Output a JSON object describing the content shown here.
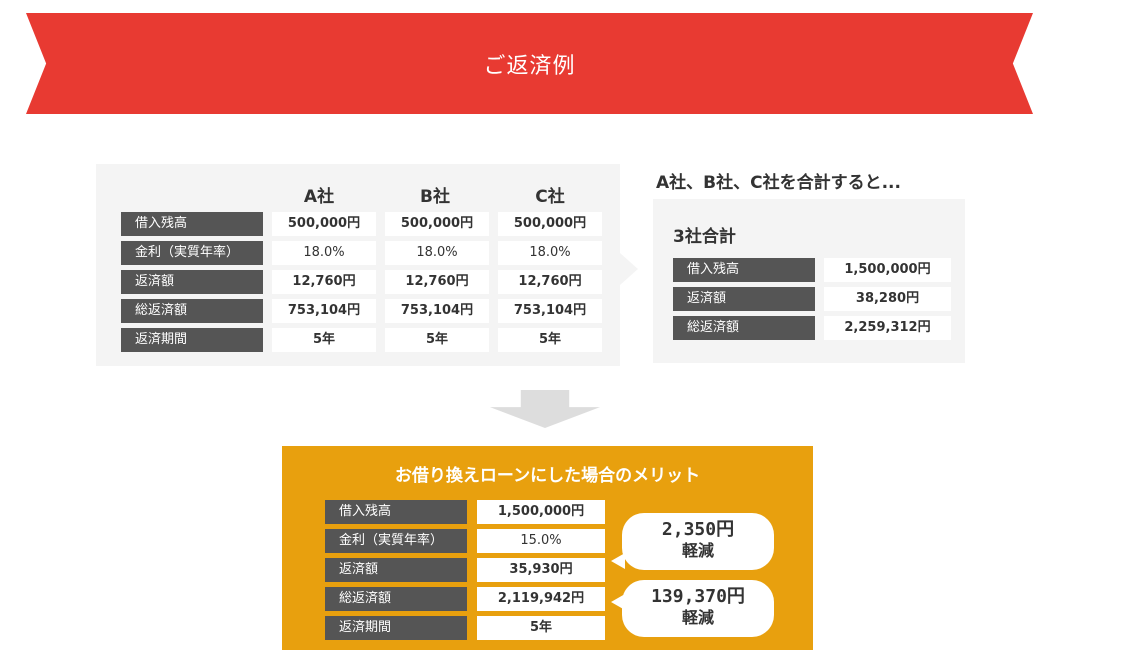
{
  "banner": {
    "title": "ご返済例"
  },
  "companies": {
    "columns": [
      "A社",
      "B社",
      "C社"
    ],
    "rows": [
      {
        "label": "借入残高",
        "values": [
          "500,000円",
          "500,000円",
          "500,000円"
        ]
      },
      {
        "label": "金利（実質年率）",
        "values": [
          "18.0%",
          "18.0%",
          "18.0%"
        ]
      },
      {
        "label": "返済額",
        "values": [
          "12,760円",
          "12,760円",
          "12,760円"
        ]
      },
      {
        "label": "総返済額",
        "values": [
          "753,104円",
          "753,104円",
          "753,104円"
        ]
      },
      {
        "label": "返済期間",
        "values": [
          "5年",
          "5年",
          "5年"
        ]
      }
    ]
  },
  "summary": {
    "heading": "A社、B社、C社を合計すると...",
    "title": "3社合計",
    "rows": [
      {
        "label": "借入残高",
        "value": "1,500,000円"
      },
      {
        "label": "返済額",
        "value": "38,280円"
      },
      {
        "label": "総返済額",
        "value": "2,259,312円"
      }
    ]
  },
  "merit": {
    "title": "お借り換えローンにした場合のメリット",
    "rows": [
      {
        "label": "借入残高",
        "value": "1,500,000円"
      },
      {
        "label": "金利（実質年率）",
        "value": "15.0%"
      },
      {
        "label": "返済額",
        "value": "35,930円"
      },
      {
        "label": "総返済額",
        "value": "2,119,942円"
      },
      {
        "label": "返済期間",
        "value": "5年"
      }
    ],
    "bubbles": [
      {
        "amount": "2,350円",
        "word": "軽減"
      },
      {
        "amount": "139,370円",
        "word": "軽減"
      }
    ]
  },
  "colors": {
    "banner": "#e83a32",
    "label_bg": "#555555",
    "panel_bg": "#f4f4f4",
    "merit_bg": "#e8a00e"
  }
}
